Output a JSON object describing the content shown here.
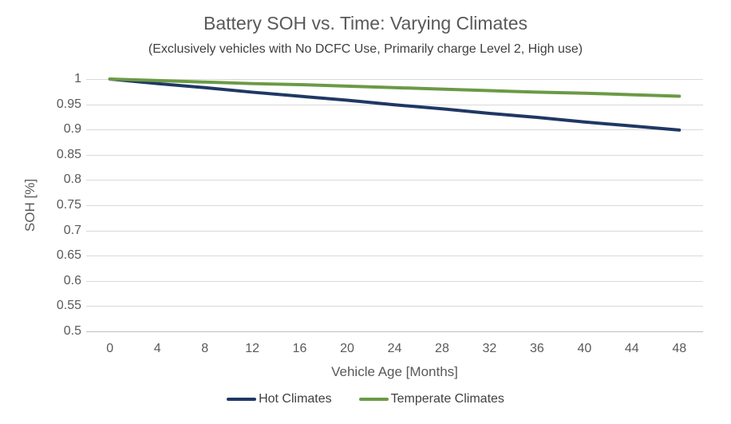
{
  "chart_data": {
    "type": "line",
    "title": "Battery SOH vs. Time: Varying Climates",
    "subtitle": "(Exclusively vehicles with No DCFC Use, Primarily charge Level 2, High use)",
    "xlabel": "Vehicle Age [Months]",
    "ylabel": "SOH [%]",
    "x": [
      0,
      4,
      8,
      12,
      16,
      20,
      24,
      28,
      32,
      36,
      40,
      44,
      48
    ],
    "x_tick_labels": [
      "0",
      "4",
      "8",
      "12",
      "16",
      "20",
      "24",
      "28",
      "32",
      "36",
      "40",
      "44",
      "48"
    ],
    "ylim": [
      0.5,
      1.0
    ],
    "y_tick_step": 0.05,
    "y_tick_labels": [
      "1",
      "0.95",
      "0.9",
      "0.85",
      "0.8",
      "0.75",
      "0.7",
      "0.65",
      "0.6",
      "0.55",
      "0.5"
    ],
    "grid": true,
    "legend_position": "bottom",
    "series": [
      {
        "name": "Hot Climates",
        "color": "#1F3864",
        "values": [
          1.0,
          0.991,
          0.983,
          0.974,
          0.966,
          0.958,
          0.949,
          0.941,
          0.932,
          0.924,
          0.915,
          0.907,
          0.899
        ]
      },
      {
        "name": "Temperate Climates",
        "color": "#6B9A45",
        "values": [
          1.0,
          0.997,
          0.994,
          0.991,
          0.989,
          0.986,
          0.983,
          0.98,
          0.977,
          0.974,
          0.972,
          0.969,
          0.966
        ]
      }
    ],
    "colors": {
      "title": "#595959",
      "subtitle": "#404040",
      "tick_label": "#595959",
      "axis_title": "#595959",
      "gridline": "#D9D9D9",
      "axis_line": "#BFBFBF",
      "legend_text": "#404040",
      "background": "#FFFFFF"
    }
  }
}
